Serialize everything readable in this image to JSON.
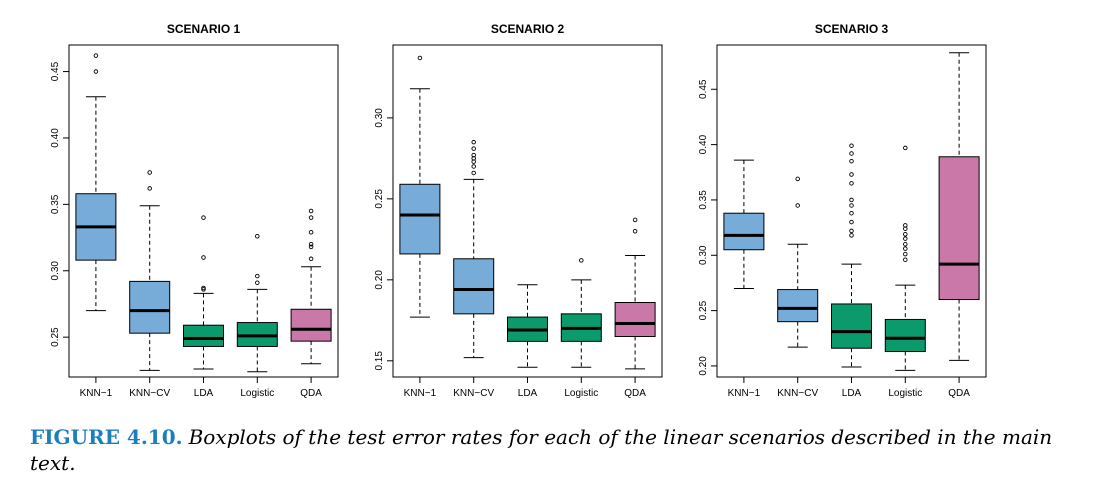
{
  "colors": {
    "blue": "#78acd8",
    "green": "#0a9a6c",
    "pink": "#c978a8"
  },
  "chart_data": [
    {
      "type": "boxplot",
      "title": "SCENARIO 1",
      "ylim": [
        0.22,
        0.47
      ],
      "yticks": [
        "0.25",
        "0.30",
        "0.35",
        "0.40",
        "0.45"
      ],
      "categories": [
        "KNN−1",
        "KNN−CV",
        "LDA",
        "Logistic",
        "QDA"
      ],
      "boxes": [
        {
          "color": "blue",
          "whisker_low": 0.27,
          "q1": 0.308,
          "median": 0.333,
          "q3": 0.358,
          "whisker_high": 0.431,
          "outliers": [
            0.45,
            0.462
          ]
        },
        {
          "color": "blue",
          "whisker_low": 0.225,
          "q1": 0.253,
          "median": 0.27,
          "q3": 0.292,
          "whisker_high": 0.349,
          "outliers": [
            0.362,
            0.374
          ]
        },
        {
          "color": "green",
          "whisker_low": 0.226,
          "q1": 0.243,
          "median": 0.249,
          "q3": 0.259,
          "whisker_high": 0.283,
          "outliers": [
            0.286,
            0.287,
            0.31,
            0.34
          ]
        },
        {
          "color": "green",
          "whisker_low": 0.224,
          "q1": 0.243,
          "median": 0.251,
          "q3": 0.261,
          "whisker_high": 0.286,
          "outliers": [
            0.291,
            0.296,
            0.326
          ]
        },
        {
          "color": "pink",
          "whisker_low": 0.23,
          "q1": 0.247,
          "median": 0.256,
          "q3": 0.271,
          "whisker_high": 0.303,
          "outliers": [
            0.309,
            0.318,
            0.32,
            0.329,
            0.34,
            0.345
          ]
        }
      ]
    },
    {
      "type": "boxplot",
      "title": "SCENARIO 2",
      "ylim": [
        0.14,
        0.345
      ],
      "yticks": [
        "0.15",
        "0.20",
        "0.25",
        "0.30"
      ],
      "categories": [
        "KNN−1",
        "KNN−CV",
        "LDA",
        "Logistic",
        "QDA"
      ],
      "boxes": [
        {
          "color": "blue",
          "whisker_low": 0.177,
          "q1": 0.216,
          "median": 0.24,
          "q3": 0.259,
          "whisker_high": 0.318,
          "outliers": [
            0.337
          ]
        },
        {
          "color": "blue",
          "whisker_low": 0.152,
          "q1": 0.179,
          "median": 0.194,
          "q3": 0.213,
          "whisker_high": 0.262,
          "outliers": [
            0.266,
            0.27,
            0.273,
            0.275,
            0.277,
            0.281,
            0.285
          ]
        },
        {
          "color": "green",
          "whisker_low": 0.146,
          "q1": 0.162,
          "median": 0.169,
          "q3": 0.177,
          "whisker_high": 0.197,
          "outliers": []
        },
        {
          "color": "green",
          "whisker_low": 0.146,
          "q1": 0.162,
          "median": 0.17,
          "q3": 0.179,
          "whisker_high": 0.2,
          "outliers": [
            0.212
          ]
        },
        {
          "color": "pink",
          "whisker_low": 0.145,
          "q1": 0.165,
          "median": 0.173,
          "q3": 0.186,
          "whisker_high": 0.215,
          "outliers": [
            0.23,
            0.237
          ]
        }
      ]
    },
    {
      "type": "boxplot",
      "title": "SCENARIO 3",
      "ylim": [
        0.19,
        0.49
      ],
      "yticks": [
        "0.20",
        "0.25",
        "0.30",
        "0.35",
        "0.40",
        "0.45"
      ],
      "categories": [
        "KNN−1",
        "KNN−CV",
        "LDA",
        "Logistic",
        "QDA"
      ],
      "boxes": [
        {
          "color": "blue",
          "whisker_low": 0.27,
          "q1": 0.305,
          "median": 0.318,
          "q3": 0.338,
          "whisker_high": 0.386,
          "outliers": []
        },
        {
          "color": "blue",
          "whisker_low": 0.217,
          "q1": 0.24,
          "median": 0.252,
          "q3": 0.269,
          "whisker_high": 0.31,
          "outliers": [
            0.345,
            0.369
          ]
        },
        {
          "color": "green",
          "whisker_low": 0.199,
          "q1": 0.216,
          "median": 0.231,
          "q3": 0.256,
          "whisker_high": 0.292,
          "outliers": [
            0.318,
            0.322,
            0.33,
            0.338,
            0.345,
            0.35,
            0.365,
            0.373,
            0.385,
            0.392,
            0.399
          ]
        },
        {
          "color": "green",
          "whisker_low": 0.196,
          "q1": 0.213,
          "median": 0.225,
          "q3": 0.242,
          "whisker_high": 0.273,
          "outliers": [
            0.296,
            0.301,
            0.306,
            0.31,
            0.315,
            0.319,
            0.324,
            0.327,
            0.397
          ]
        },
        {
          "color": "pink",
          "whisker_low": 0.205,
          "q1": 0.26,
          "median": 0.292,
          "q3": 0.389,
          "whisker_high": 0.483,
          "outliers": []
        }
      ]
    }
  ],
  "caption": {
    "label": "FIGURE 4.10.",
    "text": "Boxplots of the test error rates for each of the linear scenarios described in the main text."
  }
}
